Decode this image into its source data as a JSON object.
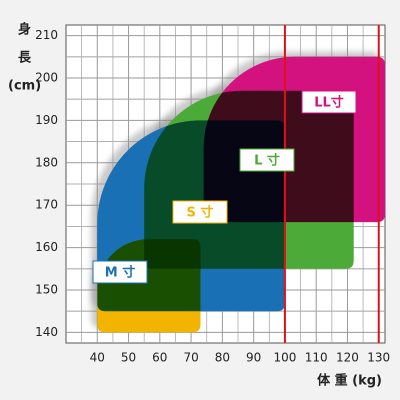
{
  "chart_data": {
    "type": "region",
    "y_label_lines": [
      "身",
      "長",
      "(cm)"
    ],
    "x_label": "体 重 (kg)",
    "xlim": [
      30,
      132
    ],
    "ylim": [
      137.5,
      212.5
    ],
    "xticks": [
      40,
      50,
      60,
      70,
      80,
      90,
      100,
      110,
      120,
      130
    ],
    "yticks": [
      140,
      150,
      160,
      170,
      180,
      190,
      200,
      210
    ],
    "grid": true,
    "reference_lines": [
      100,
      130
    ],
    "reference_color": "#e0101a",
    "series": [
      {
        "name": "M 寸",
        "color": "#1a70b4",
        "x": [
          40,
          100
        ],
        "y": [
          145,
          190
        ]
      },
      {
        "name": "S 寸",
        "color": "#f3b400",
        "x": [
          40,
          73
        ],
        "y": [
          140,
          162
        ]
      },
      {
        "name": "L 寸",
        "color": "#4caa38",
        "x": [
          55,
          122
        ],
        "y": [
          155,
          197
        ]
      },
      {
        "name": "LL寸",
        "color": "#d4127f",
        "x": [
          74,
          132
        ],
        "y": [
          166,
          205
        ]
      }
    ]
  }
}
